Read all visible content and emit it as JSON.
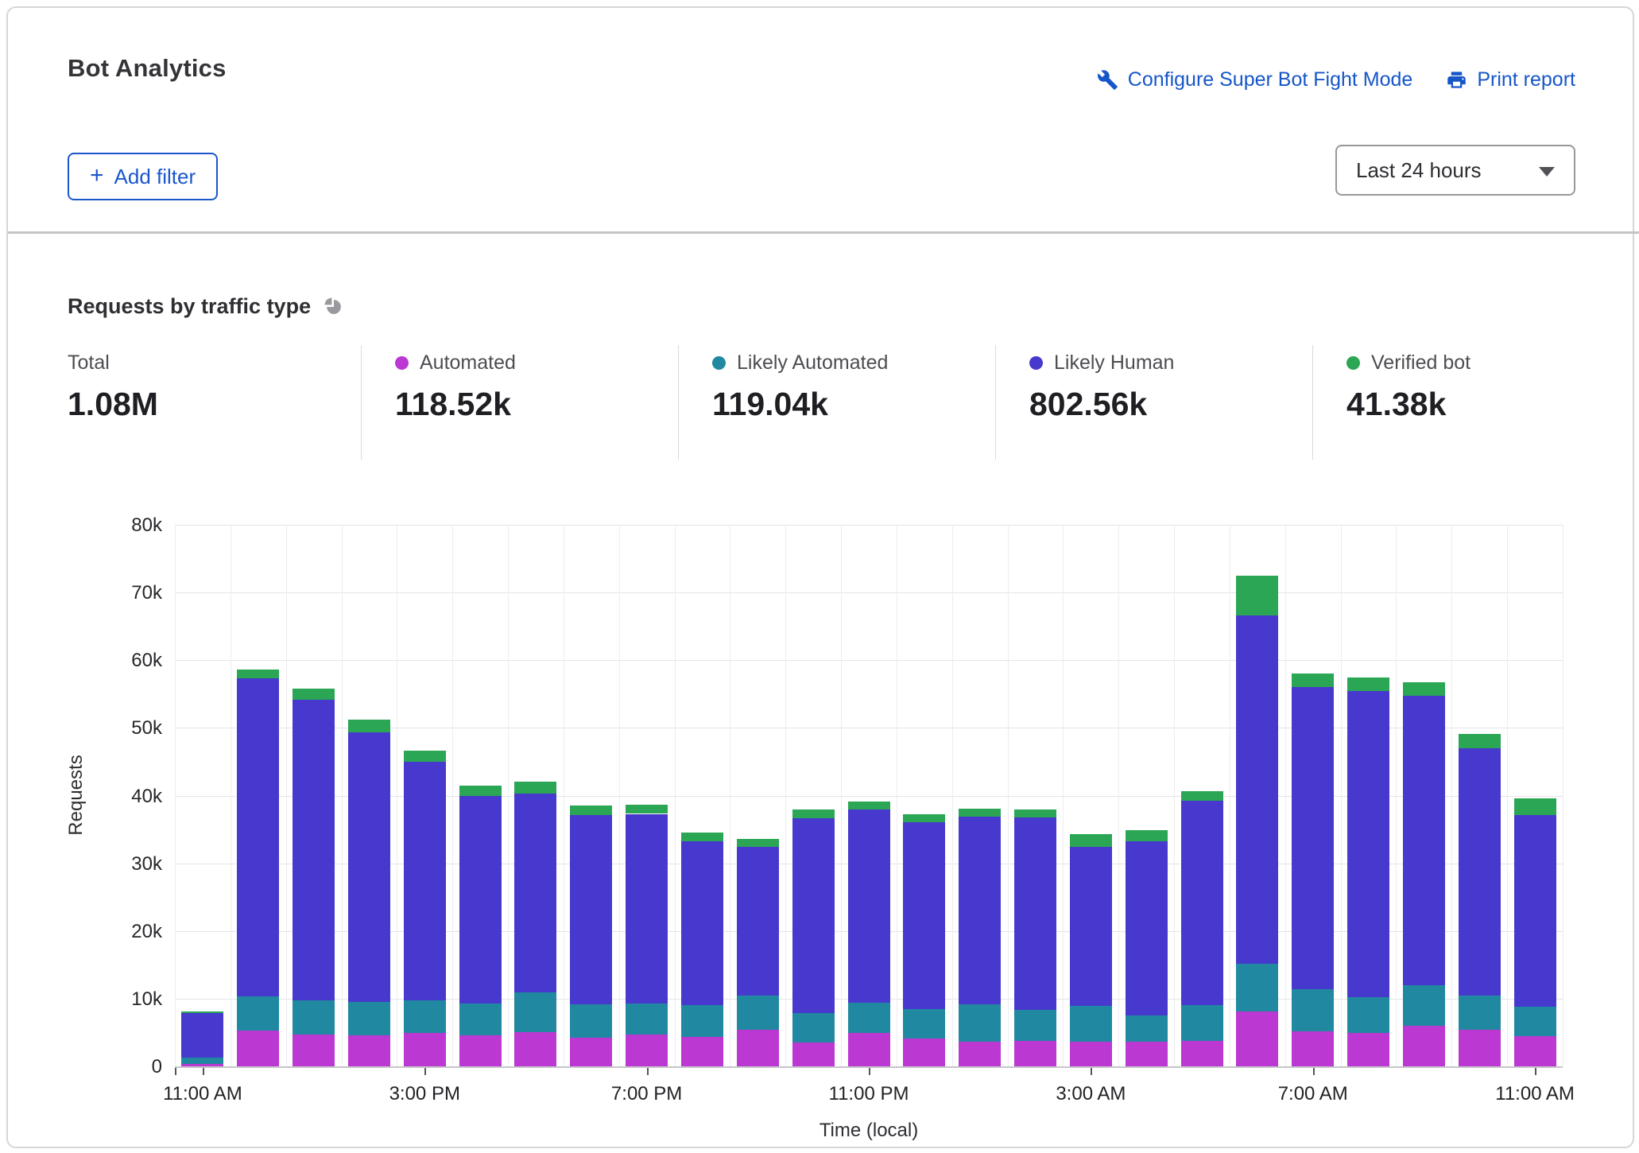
{
  "header": {
    "title": "Bot Analytics",
    "configure_link": "Configure Super Bot Fight Mode",
    "print_link": "Print report",
    "add_filter_plus": "+",
    "add_filter_label": "Add filter",
    "time_range": "Last 24 hours"
  },
  "section": {
    "title": "Requests by traffic type"
  },
  "stats": [
    {
      "id": "total",
      "label": "Total",
      "value": "1.08M",
      "color": null
    },
    {
      "id": "automated",
      "label": "Automated",
      "value": "118.52k",
      "color": "#BB38D2"
    },
    {
      "id": "likely-automated",
      "label": "Likely Automated",
      "value": "119.04k",
      "color": "#2088A0"
    },
    {
      "id": "likely-human",
      "label": "Likely Human",
      "value": "802.56k",
      "color": "#4739CE"
    },
    {
      "id": "verified-bot",
      "label": "Verified bot",
      "value": "41.38k",
      "color": "#2AA654"
    }
  ],
  "colors": {
    "link_blue": "#1656c9",
    "button_blue": "#1a57cc",
    "grid": "#e4e4e8",
    "pie_icon_gray": "#9a9a9e"
  },
  "chart_data": {
    "type": "bar",
    "variant": "stacked",
    "title": "Requests by traffic type",
    "ylabel": "Requests",
    "xlabel": "Time (local)",
    "ylim": [
      0,
      80000
    ],
    "y_ticks": [
      "0",
      "10k",
      "20k",
      "30k",
      "40k",
      "50k",
      "60k",
      "70k",
      "80k"
    ],
    "grid": true,
    "x_tick_labels": [
      "11:00 AM",
      "3:00 PM",
      "7:00 PM",
      "11:00 PM",
      "3:00 AM",
      "7:00 AM",
      "11:00 AM"
    ],
    "x_tick_every": 4,
    "unit": "requests, thousands",
    "series": [
      {
        "key": "automated",
        "name": "Automated",
        "color": "#BB38D2"
      },
      {
        "key": "likely_automated",
        "name": "Likely Automated",
        "color": "#2088A0"
      },
      {
        "key": "likely_human",
        "name": "Likely Human",
        "color": "#4739CE"
      },
      {
        "key": "verified_bot",
        "name": "Verified bot",
        "color": "#2AA654"
      }
    ],
    "series_order_note": "each bar = [automated, likely_automated, likely_human, verified_bot] stacked bottom-to-top",
    "bars": [
      [
        0.3,
        1.0,
        6.6,
        0.2
      ],
      [
        5.3,
        5.0,
        47.0,
        1.3
      ],
      [
        4.7,
        5.0,
        44.4,
        1.7
      ],
      [
        4.6,
        4.9,
        39.8,
        1.9
      ],
      [
        4.9,
        4.9,
        35.2,
        1.6
      ],
      [
        4.6,
        4.7,
        30.6,
        1.6
      ],
      [
        5.0,
        5.9,
        29.4,
        1.7
      ],
      [
        4.2,
        5.0,
        27.9,
        1.4
      ],
      [
        4.7,
        4.6,
        28.0,
        1.4
      ],
      [
        4.4,
        4.6,
        24.2,
        1.3
      ],
      [
        5.4,
        5.1,
        21.9,
        1.2
      ],
      [
        3.5,
        4.4,
        28.7,
        1.3
      ],
      [
        4.9,
        4.5,
        28.5,
        1.2
      ],
      [
        4.1,
        4.4,
        27.6,
        1.2
      ],
      [
        3.6,
        5.6,
        27.7,
        1.2
      ],
      [
        3.8,
        4.6,
        28.4,
        1.2
      ],
      [
        3.7,
        5.2,
        23.5,
        1.9
      ],
      [
        3.6,
        3.9,
        25.8,
        1.6
      ],
      [
        3.8,
        5.3,
        30.1,
        1.4
      ],
      [
        8.1,
        7.0,
        51.5,
        5.9
      ],
      [
        5.2,
        6.2,
        44.6,
        2.0
      ],
      [
        4.9,
        5.3,
        45.2,
        2.1
      ],
      [
        6.0,
        6.0,
        42.7,
        2.0
      ],
      [
        5.4,
        5.1,
        36.5,
        2.1
      ],
      [
        4.5,
        4.3,
        28.3,
        2.5
      ]
    ]
  }
}
